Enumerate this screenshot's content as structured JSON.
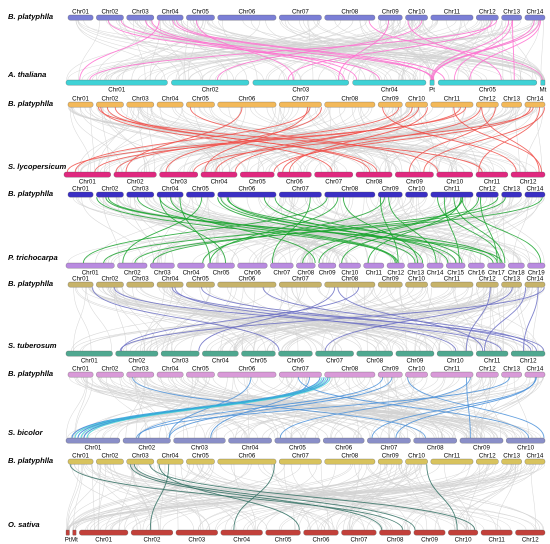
{
  "panels": [
    {
      "top_species": "B. platyphlla",
      "top_chromosomes": [
        "Chr01",
        "Chr02",
        "Chr03",
        "Chr04",
        "Chr05",
        "Chr06",
        "Chr07",
        "Chr08",
        "Chr09",
        "Chr10",
        "Chr11",
        "Chr12",
        "Chr13",
        "Chr14"
      ],
      "top_color": "#7b7fd6",
      "bottom_species": "A. thaliana",
      "bottom_chromosomes": [
        "Chr01",
        "Chr02",
        "Chr03",
        "Chr04",
        "Pt",
        "Chr05",
        "Mt"
      ],
      "bottom_color": "#3fd2d6",
      "link_color": "#ff6fd0"
    },
    {
      "top_species": "B. platyphlla",
      "top_chromosomes": [
        "Chr01",
        "Chr02",
        "Chr03",
        "Chr04",
        "Chr05",
        "Chr06",
        "Chr07",
        "Chr08",
        "Chr09",
        "Chr10",
        "Chr11",
        "Chr12",
        "Chr13",
        "Chr14"
      ],
      "top_color": "#f3b95a",
      "bottom_species": "S. lycopersicum",
      "bottom_chromosomes": [
        "Chr01",
        "Chr02",
        "Chr03",
        "Chr04",
        "Chr05",
        "Chr06",
        "Chr07",
        "Chr08",
        "Chr09",
        "Chr10",
        "Chr11",
        "Chr12"
      ],
      "bottom_color": "#e0287f",
      "link_color": "#f0504a"
    },
    {
      "top_species": "B. platyphlla",
      "top_chromosomes": [
        "Chr01",
        "Chr02",
        "Chr03",
        "Chr04",
        "Chr05",
        "Chr06",
        "Chr07",
        "Chr08",
        "Chr09",
        "Chr10",
        "Chr11",
        "Chr12",
        "Chr13",
        "Chr14"
      ],
      "top_color": "#3b2fc4",
      "bottom_species": "P. trichocarpa",
      "bottom_chromosomes": [
        "Chr01",
        "Chr02",
        "Chr03",
        "Chr04",
        "Chr05",
        "Chr06",
        "Chr07",
        "Chr08",
        "Chr09",
        "Chr10",
        "Chr11",
        "Chr12",
        "Chr13",
        "Chr14",
        "Chr15",
        "Chr16",
        "Chr17",
        "Chr18",
        "Chr19"
      ],
      "bottom_color": "#b98be0",
      "link_color": "#1aa52e"
    },
    {
      "top_species": "B. platyphlla",
      "top_chromosomes": [
        "Chr01",
        "Chr02",
        "Chr03",
        "Chr04",
        "Chr05",
        "Chr06",
        "Chr07",
        "Chr08",
        "Chr09",
        "Chr10",
        "Chr11",
        "Chr12",
        "Chr13",
        "Chr14"
      ],
      "top_color": "#c7b36a",
      "bottom_species": "S. tuberosum",
      "bottom_chromosomes": [
        "Chr01",
        "Chr02",
        "Chr03",
        "Chr04",
        "Chr05",
        "Chr06",
        "Chr07",
        "Chr08",
        "Chr09",
        "Chr10",
        "Chr11",
        "Chr12"
      ],
      "bottom_color": "#4fa890",
      "link_color": "#6b6fc4"
    },
    {
      "top_species": "B. platyphlla",
      "top_chromosomes": [
        "Chr01",
        "Chr02",
        "Chr03",
        "Chr04",
        "Chr05",
        "Chr06",
        "Chr07",
        "Chr08",
        "Chr09",
        "Chr10",
        "Chr11",
        "Chr12",
        "Chr13",
        "Chr14"
      ],
      "top_color": "#d99ad8",
      "bottom_species": "S. bicolor",
      "bottom_chromosomes": [
        "Chr01",
        "Chr02",
        "Chr03",
        "Chr04",
        "Chr05",
        "Chr06",
        "Chr07",
        "Chr08",
        "Chr09",
        "Chr10"
      ],
      "bottom_color": "#8a8fc8",
      "link_color": "#4a90d9"
    },
    {
      "top_species": "B. platyphlla",
      "top_chromosomes": [
        "Chr01",
        "Chr02",
        "Chr03",
        "Chr04",
        "Chr05",
        "Chr06",
        "Chr07",
        "Chr08",
        "Chr09",
        "Chr10",
        "Chr11",
        "Chr12",
        "Chr13",
        "Chr14"
      ],
      "top_color": "#d8c35e",
      "bottom_species": "O. sativa",
      "bottom_chromosomes": [
        "Pt",
        "Mt",
        "Chr01",
        "Chr02",
        "Chr03",
        "Chr04",
        "Chr05",
        "Chr06",
        "Chr07",
        "Chr08",
        "Chr09",
        "Chr10",
        "Chr11",
        "Chr12"
      ],
      "bottom_color": "#c2403a",
      "link_color": "#2f6e62"
    }
  ]
}
